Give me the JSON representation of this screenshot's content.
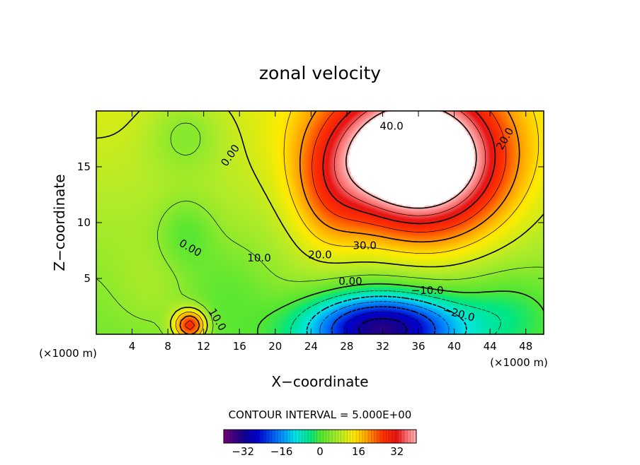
{
  "chart_data": {
    "type": "heatmap",
    "title": "zonal velocity",
    "xlabel": "X−coordinate",
    "ylabel": "Z−coordinate",
    "x_unit_left": "(×1000 m)",
    "x_unit_right": "(×1000 m)",
    "xlim": [
      0,
      50
    ],
    "ylim": [
      0,
      20
    ],
    "xticks": [
      {
        "value": 4,
        "label": "4"
      },
      {
        "value": 8,
        "label": "8"
      },
      {
        "value": 12,
        "label": "12"
      },
      {
        "value": 16,
        "label": "16"
      },
      {
        "value": 20,
        "label": "20"
      },
      {
        "value": 24,
        "label": "24"
      },
      {
        "value": 28,
        "label": "28"
      },
      {
        "value": 32,
        "label": "32"
      },
      {
        "value": 36,
        "label": "36"
      },
      {
        "value": 40,
        "label": "40"
      },
      {
        "value": 44,
        "label": "44"
      },
      {
        "value": 48,
        "label": "48"
      }
    ],
    "yticks": [
      {
        "value": 5,
        "label": "5"
      },
      {
        "value": 10,
        "label": "10"
      },
      {
        "value": 15,
        "label": "15"
      }
    ],
    "contour_interval_label": "CONTOUR INTERVAL = 5.000E+00",
    "colorbar": {
      "range": [
        -40,
        40
      ],
      "ticks": [
        {
          "value": -32,
          "label": "−32"
        },
        {
          "value": -16,
          "label": "−16"
        },
        {
          "value": 0,
          "label": "0"
        },
        {
          "value": 16,
          "label": "16"
        },
        {
          "value": 32,
          "label": "32"
        }
      ]
    },
    "contour_labels": [
      {
        "text": "40.0",
        "x": 33.0,
        "y": 18.6,
        "rotate": 0
      },
      {
        "text": "20.0",
        "x": 45.7,
        "y": 17.5,
        "rotate": -60
      },
      {
        "text": "0.00",
        "x": 15.0,
        "y": 16.0,
        "rotate": -55
      },
      {
        "text": "0.00",
        "x": 10.5,
        "y": 7.7,
        "rotate": 30
      },
      {
        "text": "10.0",
        "x": 18.2,
        "y": 6.8,
        "rotate": 0
      },
      {
        "text": "20.0",
        "x": 25.0,
        "y": 7.1,
        "rotate": 0
      },
      {
        "text": "30.0",
        "x": 30.0,
        "y": 7.9,
        "rotate": 0
      },
      {
        "text": "0.00",
        "x": 28.4,
        "y": 4.7,
        "rotate": 0
      },
      {
        "text": "−10.0",
        "x": 37.0,
        "y": 3.9,
        "rotate": 0
      },
      {
        "text": "−20.0",
        "x": 40.5,
        "y": 1.8,
        "rotate": 15
      },
      {
        "text": "10.0",
        "x": 13.5,
        "y": 1.3,
        "rotate": 60
      }
    ],
    "field_features": [
      {
        "label": "westward-max",
        "x": 32,
        "y": 0.5,
        "value": -34,
        "sx": 6.0,
        "sy": 2.2
      },
      {
        "label": "eastward-core",
        "x": 35,
        "y": 16,
        "value": 46,
        "sx": 6.5,
        "sy": 4.2
      },
      {
        "label": "local-max",
        "x": 10.5,
        "y": 0.8,
        "value": 27,
        "sx": 1.3,
        "sy": 1.0
      },
      {
        "label": "local-min",
        "x": 10,
        "y": 9,
        "value": -3,
        "sx": 2.2,
        "sy": 2.2
      },
      {
        "label": "local-min",
        "x": 10,
        "y": 18,
        "value": -3,
        "sx": 3.0,
        "sy": 2.5
      }
    ],
    "values_estimated": true
  }
}
